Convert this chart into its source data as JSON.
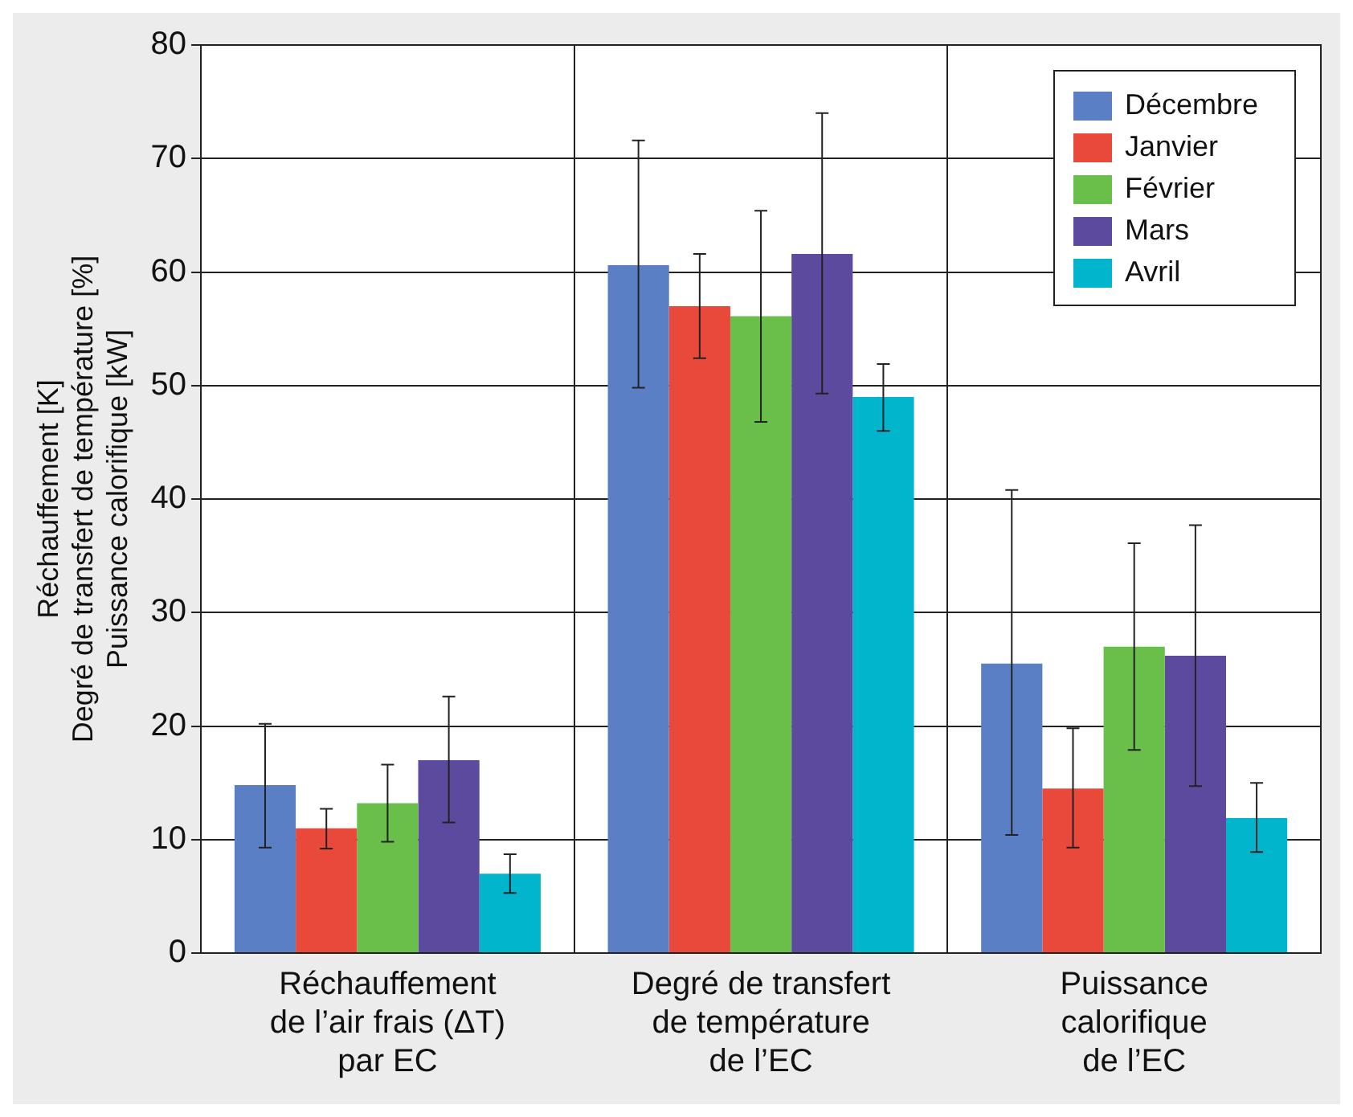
{
  "chart_data": {
    "type": "bar",
    "ylabel": "Réchauffement [K]\nDegré de transfert de température [%]\nPuissance calorifique [kW]",
    "categories": [
      "Réchauffement\nde l’air frais (ΔT)\npar EC",
      "Degré de transfert\nde température\nde l’EC",
      "Puissance\ncalorifique\nde l’EC"
    ],
    "series": [
      {
        "name": "Décembre",
        "color": "#5b7fc4",
        "values": [
          14.8,
          60.6,
          25.5
        ],
        "errors": [
          [
            9.3,
            20.2
          ],
          [
            49.8,
            71.6
          ],
          [
            10.4,
            40.8
          ]
        ]
      },
      {
        "name": "Janvier",
        "color": "#e8493a",
        "values": [
          11,
          57,
          14.5
        ],
        "errors": [
          [
            9.2,
            12.7
          ],
          [
            52.4,
            61.6
          ],
          [
            9.3,
            19.8
          ]
        ]
      },
      {
        "name": "Février",
        "color": "#6abf4b",
        "values": [
          13.2,
          56.1,
          27
        ],
        "errors": [
          [
            9.8,
            16.6
          ],
          [
            46.8,
            65.4
          ],
          [
            17.9,
            36.1
          ]
        ]
      },
      {
        "name": "Mars",
        "color": "#5b4a9e",
        "values": [
          17,
          61.6,
          26.2
        ],
        "errors": [
          [
            11.5,
            22.6
          ],
          [
            49.3,
            74
          ],
          [
            14.7,
            37.7
          ]
        ]
      },
      {
        "name": "Avril",
        "color": "#00b5cc",
        "values": [
          7,
          49,
          11.9
        ],
        "errors": [
          [
            5.3,
            8.7
          ],
          [
            46,
            51.9
          ],
          [
            8.9,
            15
          ]
        ]
      }
    ],
    "ylim": [
      0,
      80
    ],
    "yticks": [
      0,
      10,
      20,
      30,
      40,
      50,
      60,
      70,
      80
    ],
    "grid": true,
    "legend": "top right"
  }
}
